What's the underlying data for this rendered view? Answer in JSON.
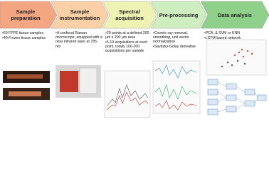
{
  "steps": [
    {
      "title": "Sample preparation",
      "bullets": [
        "•60 FFPE tissue samples",
        "•40 Frozen tissue samples"
      ]
    },
    {
      "title": "Sample instrumentation",
      "bullets": [
        "•A confocal Raman microscope, equipped with a near infrared laser at 785 nm"
      ]
    },
    {
      "title": "Spectral acquisition",
      "bullets": [
        "•20 points at a defined 200 µm x 200 µm area",
        "•5-10 acquisitions at each point, totally 100-200 acquisitions per sample"
      ]
    },
    {
      "title": "Pre-processing",
      "bullets": [
        "•Cosmic ray removal, smoothing, unit vector normalization",
        "•Savitzky-Golay derivative"
      ]
    },
    {
      "title": "Data analysis",
      "bullets": [
        "•PCA, & SVM or KNN",
        "•LSTM-based network"
      ]
    }
  ]
}
